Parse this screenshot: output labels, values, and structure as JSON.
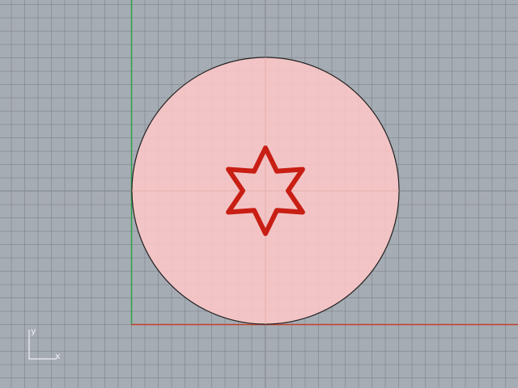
{
  "viewport": {
    "background": "#a6acb3",
    "grid_color": "#7e848b"
  },
  "scene": {
    "x_axis_color": "#c0402f",
    "y_axis_color": "#2f9f4a",
    "circle": {
      "fill": "#ffc8c8",
      "stroke": "#222222"
    },
    "star": {
      "points": 6,
      "color": "#c81e14"
    }
  },
  "axis_widget": {
    "x_label": "x",
    "y_label": "y",
    "color": "#eef0f3"
  }
}
